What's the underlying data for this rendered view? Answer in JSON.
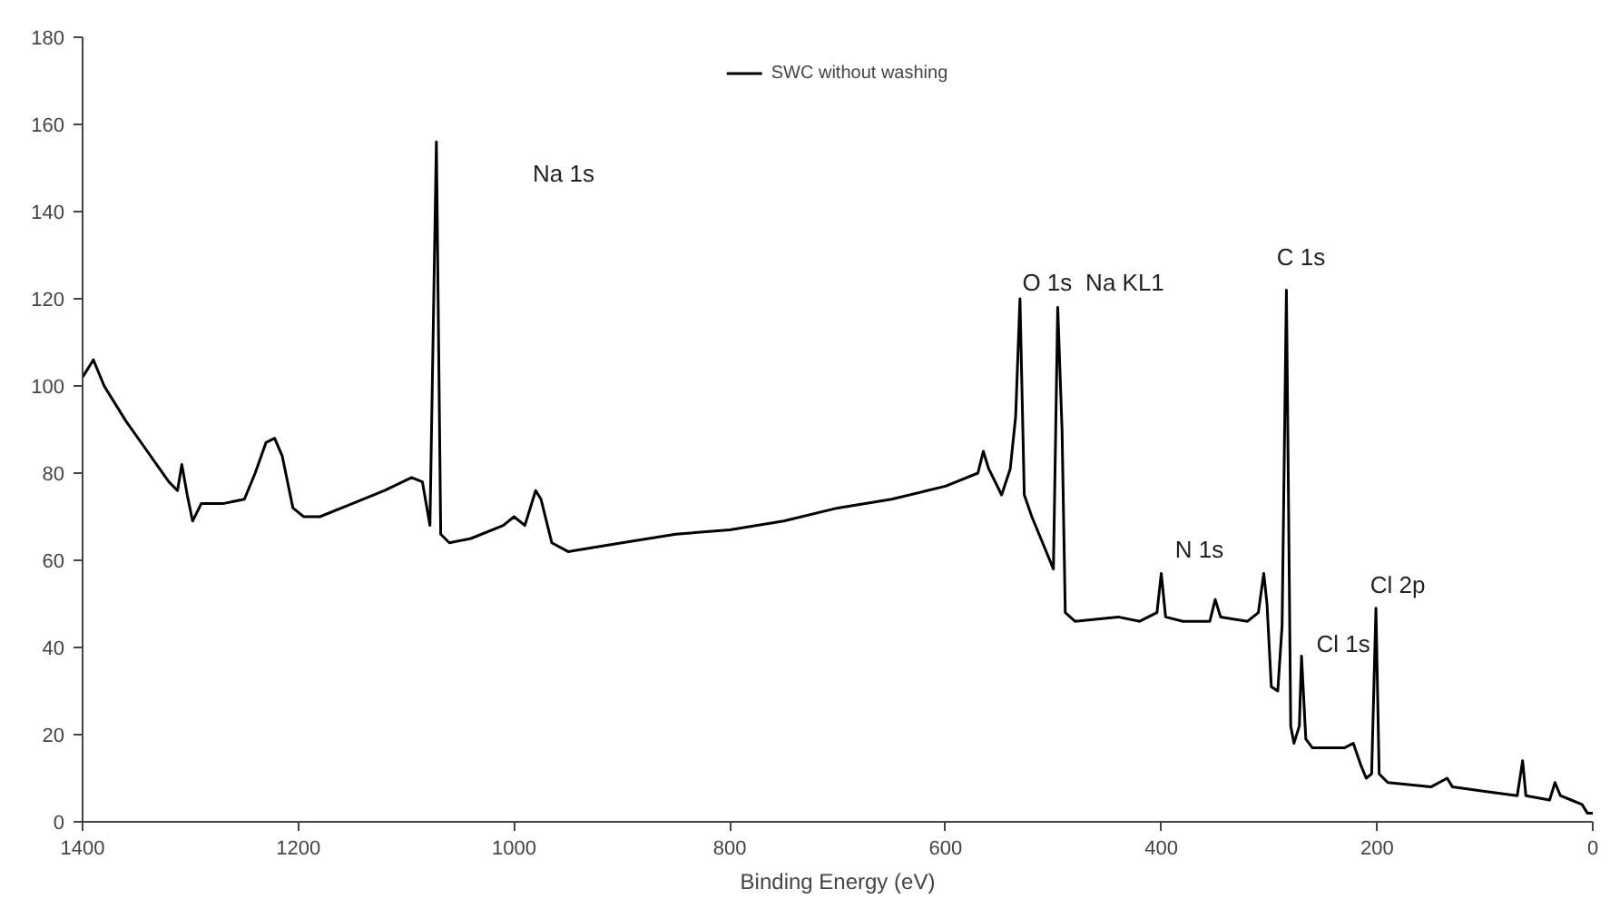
{
  "chart_data": {
    "type": "line",
    "xlabel": "Binding Energy (eV)",
    "xlim": [
      1400,
      0
    ],
    "xticks": [
      1400,
      1200,
      1000,
      800,
      600,
      400,
      200,
      0
    ],
    "ylim": [
      0,
      180
    ],
    "yticks": [
      0,
      20,
      40,
      60,
      80,
      100,
      120,
      140,
      160,
      180
    ],
    "grid": false,
    "legend": "top",
    "line_style": "solid",
    "x": [
      1400,
      1390,
      1380,
      1360,
      1340,
      1320,
      1312,
      1308,
      1303,
      1298,
      1290,
      1270,
      1250,
      1240,
      1230,
      1222,
      1215,
      1205,
      1195,
      1180,
      1150,
      1120,
      1095,
      1085,
      1078,
      1072,
      1068,
      1060,
      1040,
      1010,
      1000,
      990,
      980,
      975,
      965,
      950,
      900,
      850,
      800,
      750,
      700,
      650,
      600,
      570,
      565,
      560,
      548,
      540,
      535,
      531,
      527,
      520,
      510,
      500,
      496,
      492,
      489,
      480,
      440,
      420,
      404,
      400,
      396,
      380,
      355,
      350,
      345,
      320,
      310,
      305,
      302,
      298,
      292,
      288,
      284,
      280,
      277,
      272,
      270,
      266,
      260,
      230,
      222,
      215,
      210,
      205,
      201,
      198,
      190,
      150,
      135,
      130,
      100,
      70,
      65,
      62,
      40,
      35,
      30,
      20,
      10,
      5,
      0
    ],
    "series": [
      {
        "name": "SWC without washing",
        "color": "#000000",
        "values": [
          102,
          106,
          100,
          92,
          85,
          78,
          76,
          82,
          75,
          69,
          73,
          73,
          74,
          80,
          87,
          88,
          84,
          72,
          70,
          70,
          73,
          76,
          79,
          78,
          68,
          156,
          66,
          64,
          65,
          68,
          70,
          68,
          76,
          74,
          64,
          62,
          64,
          66,
          67,
          69,
          72,
          74,
          77,
          80,
          85,
          81,
          75,
          81,
          93,
          120,
          75,
          70,
          64,
          58,
          118,
          90,
          48,
          46,
          47,
          46,
          48,
          57,
          47,
          46,
          46,
          51,
          47,
          46,
          48,
          57,
          50,
          31,
          30,
          45,
          122,
          22,
          18,
          22,
          38,
          19,
          17,
          17,
          18,
          13,
          10,
          11,
          49,
          11,
          9,
          8,
          10,
          8,
          7,
          6,
          14,
          6,
          5,
          9,
          6,
          5,
          4,
          2,
          2
        ]
      }
    ],
    "annotations": [
      "Na 1s",
      {
        "text": "O 1s",
        "x": 531,
        "y": 120
      },
      {
        "text": "Na KL1",
        "x": 496,
        "y": 118
      },
      {
        "text": "C 1s",
        "x": 284,
        "y": 122
      },
      {
        "text": "N 1s",
        "x": 400,
        "y": 57
      },
      {
        "text": "Cl 1s",
        "x": 270,
        "y": 38
      },
      {
        "text": "Cl 2p",
        "x": 201,
        "y": 49
      }
    ]
  }
}
